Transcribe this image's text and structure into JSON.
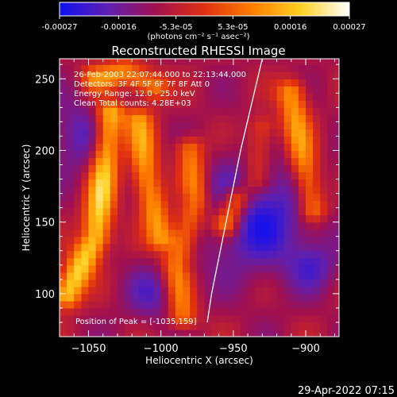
{
  "chart_data": {
    "type": "heatmap",
    "title": "Reconstructed RHESSI Image",
    "xlabel": "Heliocentric X (arcsec)",
    "ylabel": "Heliocentric Y (arcsec)",
    "xlim": [
      -1070,
      -877
    ],
    "ylim": [
      70,
      264
    ],
    "x_ticks": [
      -1050,
      -1000,
      -950,
      -900
    ],
    "y_ticks": [
      100,
      150,
      200,
      250
    ],
    "x_tick_labels": [
      "−1050",
      "−1000",
      "−950",
      "−900"
    ],
    "y_tick_labels": [
      "100",
      "150",
      "200",
      "250"
    ],
    "colorbar": {
      "range": [
        -0.00027,
        0.00027
      ],
      "tick_values": [
        -0.00027,
        -0.00016,
        -5.3e-05,
        5.3e-05,
        0.00016,
        0.00027
      ],
      "tick_labels": [
        "-0.00027",
        "-0.00016",
        "-5.3e-05",
        "5.3e-05",
        "0.00016",
        "0.00027"
      ],
      "unit_label": "(photons cm⁻² s⁻¹ asec⁻²)",
      "colormap": [
        "#1010f0",
        "#6020b0",
        "#a01050",
        "#e03010",
        "#ff8000",
        "#ffd020",
        "#ffffff"
      ]
    },
    "annotations": [
      "26-Feb-2003 22:07:44.000 to 22:13:44.000",
      "Detectors: 3F 4F 5F 6F 7F 8F  Att 0",
      "Energy Range: 12.0 - 25.0 keV",
      "Clean     Total counts: 4.28E+03"
    ],
    "peak_label": "Position of Peak = [-1035,159]",
    "peak": [
      -1035,
      159
    ],
    "bright_ridges": [
      {
        "points": [
          [
            -1065,
            100
          ],
          [
            -1045,
            140
          ],
          [
            -1040,
            180
          ],
          [
            -1035,
            225
          ]
        ],
        "value": 0.00027
      },
      {
        "points": [
          [
            -1015,
            220
          ],
          [
            -1010,
            180
          ],
          [
            -1000,
            140
          ]
        ],
        "value": 0.0002
      },
      {
        "points": [
          [
            -980,
            200
          ],
          [
            -975,
            165
          ],
          [
            -990,
            120
          ],
          [
            -985,
            85
          ]
        ],
        "value": 0.00018
      },
      {
        "points": [
          [
            -948,
            165
          ],
          [
            -955,
            150
          ]
        ],
        "value": 0.00024
      },
      {
        "points": [
          [
            -910,
            240
          ],
          [
            -905,
            210
          ],
          [
            -895,
            160
          ]
        ],
        "value": 0.0002
      },
      {
        "points": [
          [
            -930,
            215
          ],
          [
            -935,
            180
          ]
        ],
        "value": 0.00012
      },
      {
        "points": [
          [
            -1045,
            250
          ],
          [
            -1025,
            255
          ],
          [
            -1005,
            245
          ]
        ],
        "value": 0.00018
      }
    ],
    "dark_regions": [
      {
        "center": [
          -935,
          155
        ],
        "radius": 28,
        "value": -0.00027
      },
      {
        "center": [
          -1055,
          210
        ],
        "radius": 18,
        "value": -0.00018
      },
      {
        "center": [
          -1005,
          100
        ],
        "radius": 14,
        "value": -0.00016
      },
      {
        "center": [
          -895,
          120
        ],
        "radius": 12,
        "value": -0.00016
      }
    ],
    "limb_curve": [
      [
        -930,
        264
      ],
      [
        -945,
        200
      ],
      [
        -955,
        150
      ],
      [
        -965,
        100
      ],
      [
        -968,
        80
      ]
    ]
  },
  "footer": {
    "timestamp": "29-Apr-2022 07:15"
  }
}
